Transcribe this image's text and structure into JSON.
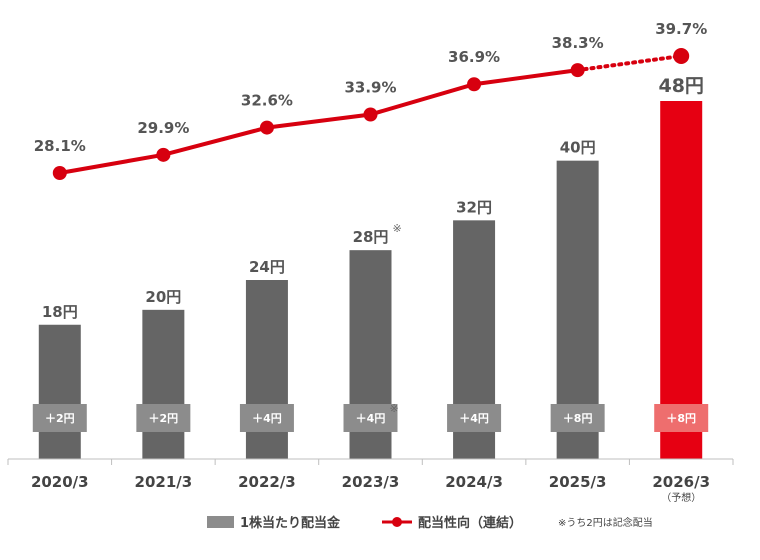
{
  "chart_data": {
    "type": "bar",
    "categories": [
      "2020/3",
      "2021/3",
      "2022/3",
      "2023/3",
      "2024/3",
      "2025/3",
      "2026/3"
    ],
    "category_notes": [
      "",
      "",
      "",
      "",
      "",
      "",
      "（予想）"
    ],
    "series": [
      {
        "name": "1株当たり配当金",
        "type": "bar",
        "values": [
          18,
          20,
          24,
          28,
          32,
          40,
          48
        ],
        "labels": [
          "18円",
          "20円",
          "24円",
          "28円",
          "32円",
          "40円",
          "48円"
        ],
        "increase_labels": [
          "＋2円",
          "＋2円",
          "＋4円",
          "＋4円",
          "＋4円",
          "＋8円",
          "＋8円"
        ],
        "color": "#656565",
        "highlight_color": "#e60012",
        "highlight_index": 6
      },
      {
        "name": "配当性向（連結）",
        "type": "line",
        "values": [
          28.1,
          29.9,
          32.6,
          33.9,
          36.9,
          38.3,
          39.7
        ],
        "labels": [
          "28.1%",
          "29.9%",
          "32.6%",
          "33.9%",
          "36.9%",
          "38.3%",
          "39.7%"
        ],
        "color": "#d7000f",
        "forecast_from_index": 5
      }
    ],
    "note_mark": "※",
    "note_mark_index": 3,
    "footnote": "※うち2円は記念配当",
    "bar_ylim": [
      0,
      48
    ],
    "line_ylim": [
      28.1,
      39.7
    ],
    "grid": false,
    "legend_position": "bottom"
  }
}
